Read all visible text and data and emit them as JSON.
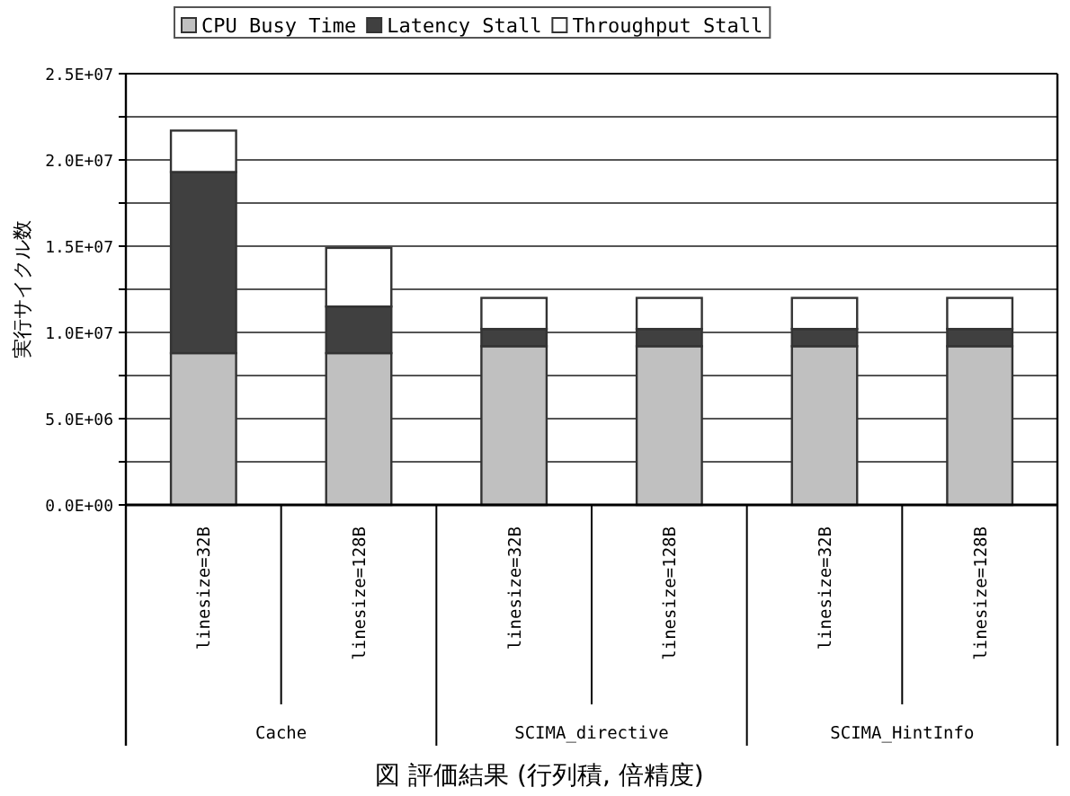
{
  "chart_data": {
    "type": "bar",
    "stacked": true,
    "ylabel": "実行サイクル数",
    "categories": [
      "linesize=32B",
      "linesize=128B",
      "linesize=32B",
      "linesize=128B",
      "linesize=32B",
      "linesize=128B"
    ],
    "series": [
      {
        "name": "CPU Busy Time",
        "color": "#c0c0c0",
        "values": [
          8800000,
          8800000,
          9200000,
          9200000,
          9200000,
          9200000
        ]
      },
      {
        "name": "Latency Stall",
        "color": "#404040",
        "values": [
          10500000,
          2700000,
          1000000,
          1000000,
          1000000,
          1000000
        ]
      },
      {
        "name": "Throughput Stall",
        "color": "#ffffff",
        "values": [
          2400000,
          3400000,
          1800000,
          1800000,
          1800000,
          1800000
        ]
      }
    ],
    "ylim": [
      0,
      25000000
    ],
    "yticks": [
      {
        "value": 0,
        "label": "0.0E+00"
      },
      {
        "value": 2500000,
        "label": null
      },
      {
        "value": 5000000,
        "label": "5.0E+06"
      },
      {
        "value": 7500000,
        "label": null
      },
      {
        "value": 10000000,
        "label": "1.0E+07"
      },
      {
        "value": 12500000,
        "label": null
      },
      {
        "value": 15000000,
        "label": "1.5E+07"
      },
      {
        "value": 17500000,
        "label": null
      },
      {
        "value": 20000000,
        "label": "2.0E+07"
      },
      {
        "value": 22500000,
        "label": null
      },
      {
        "value": 25000000,
        "label": "2.5E+07"
      }
    ],
    "grid": "y",
    "legend": "top",
    "annotations": [
      "Cache",
      "SCIMA_directive",
      "SCIMA_HintInfo",
      "図 評価結果 (行列積, 倍精度)"
    ]
  }
}
